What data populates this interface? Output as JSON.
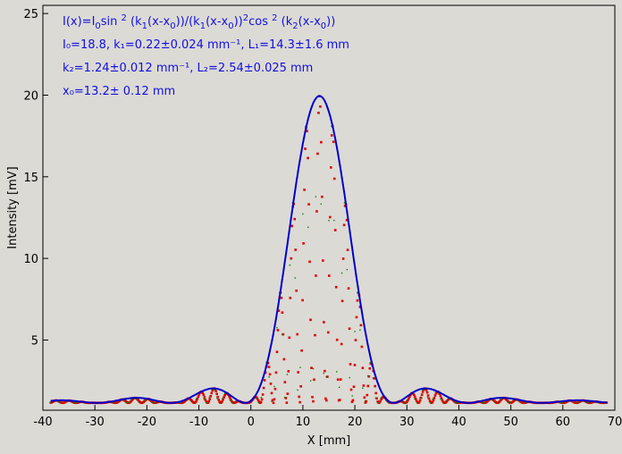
{
  "chart_data": {
    "type": "scatter",
    "title": "",
    "xlabel": "X [mm]",
    "ylabel": "Intensity [mV]",
    "xlim": [
      -40,
      70
    ],
    "ylim": [
      0.7,
      25.5
    ],
    "x_ticks": [
      -40,
      -30,
      -20,
      -10,
      0,
      10,
      20,
      30,
      40,
      50,
      60,
      70
    ],
    "y_ticks": [
      5,
      10,
      15,
      20,
      25
    ],
    "grid": false,
    "legend": "none",
    "colors": {
      "background": "#dcdad5",
      "axes": "#000000",
      "fit_curve": "#0000cc",
      "data_points": "#dd0000",
      "secondary_points": "#008000",
      "annotation": "#1010e0"
    },
    "fit": {
      "I0": 18.8,
      "k1": 0.22,
      "L1": 14.3,
      "k2": 1.24,
      "L2": 2.54,
      "x0": 13.2,
      "baseline": 1.15
    },
    "series": [
      {
        "x_start": -38.5,
        "x_end": 68.5,
        "x_step": 0.5
      }
    ],
    "annotations": [
      {
        "prefix": "I(x)=I",
        "sub": "0",
        "text": "sin ",
        "sup": "2",
        "rest": " (k₁(x-x₀))/(k₁(x-x₀))²cos ² (k₂(x-x₀))"
      },
      {
        "text": "I₀=18.8,  k₁=0.22±0.024 mm⁻¹,   L₁=14.3±1.6 mm"
      },
      {
        "text": "k₂=1.24±0.012 mm⁻¹,   L₂=2.54±0.025 mm"
      },
      {
        "text": "x₀=13.2±   0.12 mm"
      }
    ]
  }
}
